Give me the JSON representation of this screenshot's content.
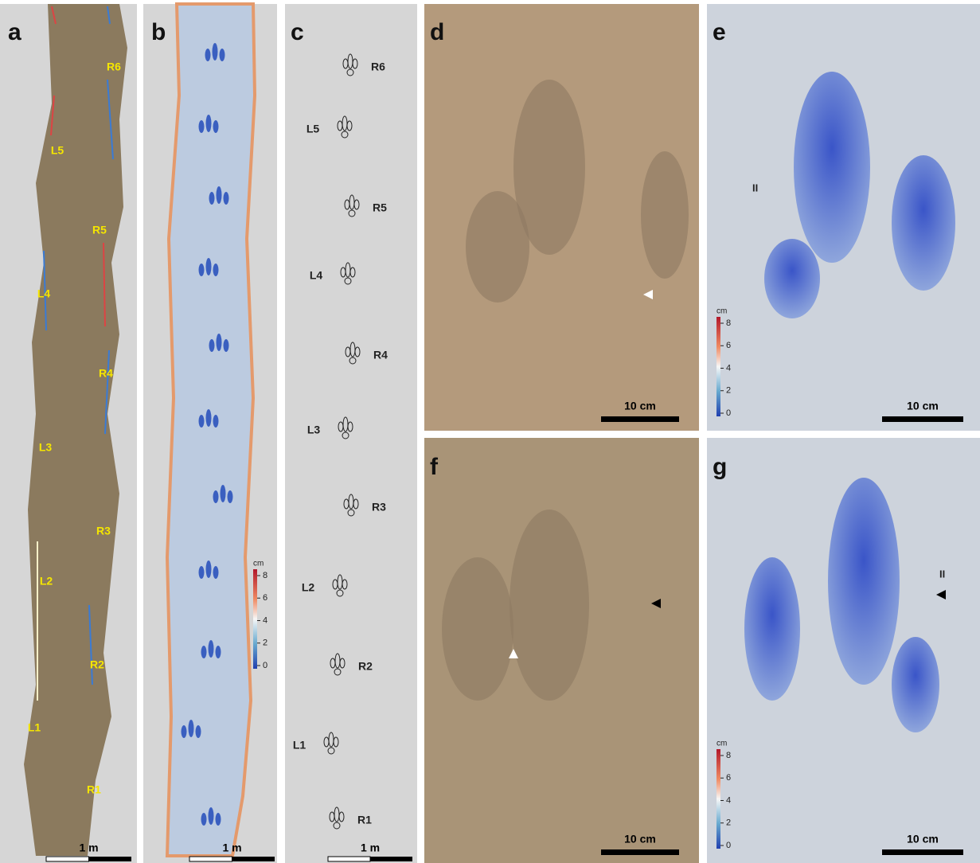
{
  "panels": [
    {
      "letter": "a",
      "track_labels": [
        "R6",
        "L5",
        "R5",
        "L4",
        "R4",
        "L3",
        "R3",
        "L2",
        "R2",
        "L1",
        "R1"
      ],
      "scale_bar": "1 m"
    },
    {
      "letter": "b",
      "scale_bar": "1 m",
      "colorbar": {
        "unit": "cm",
        "ticks": [
          8,
          6,
          4,
          2,
          0
        ]
      }
    },
    {
      "letter": "c",
      "track_labels": [
        "R6",
        "L5",
        "R5",
        "L4",
        "R4",
        "L3",
        "R3",
        "L2",
        "R2",
        "L1",
        "R1"
      ],
      "scale_bar": "1 m"
    },
    {
      "letter": "d",
      "scale_bar": "10 cm"
    },
    {
      "letter": "e",
      "digit_label": "II",
      "scale_bar": "10 cm",
      "colorbar": {
        "unit": "cm",
        "ticks": [
          8,
          6,
          4,
          2,
          0
        ]
      }
    },
    {
      "letter": "f",
      "scale_bar": "10 cm"
    },
    {
      "letter": "g",
      "digit_label": "II",
      "scale_bar": "10 cm",
      "colorbar": {
        "unit": "cm",
        "ticks": [
          8,
          6,
          4,
          2,
          0
        ]
      }
    }
  ]
}
